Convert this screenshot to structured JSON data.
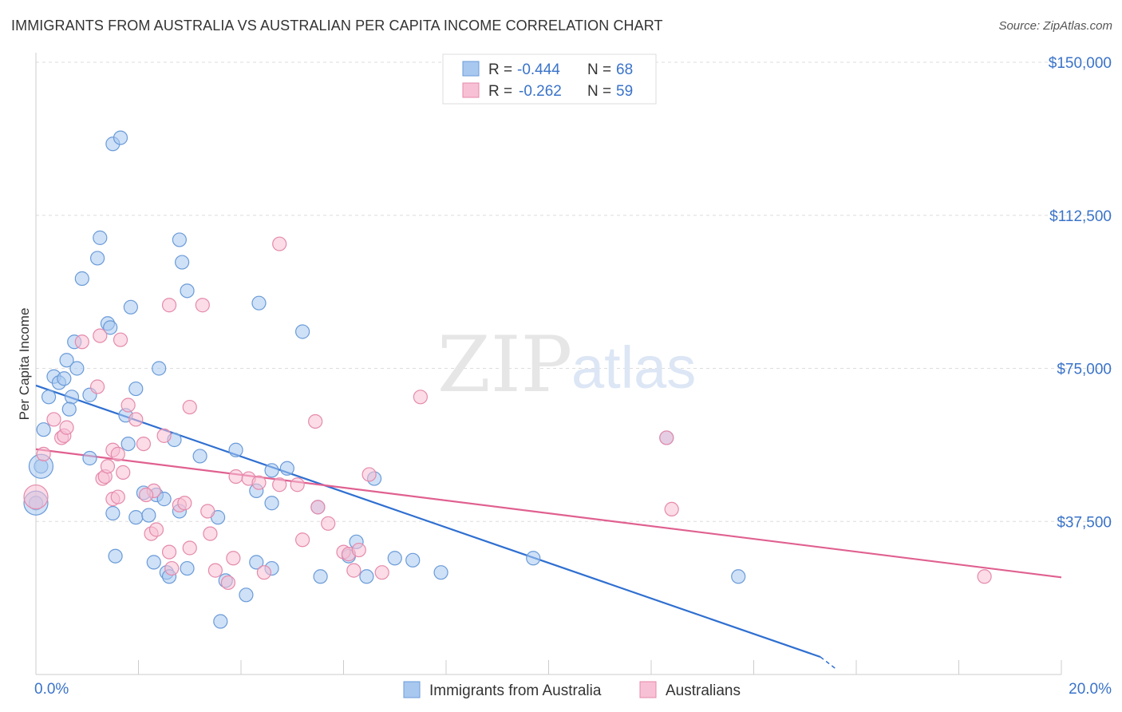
{
  "title": "IMMIGRANTS FROM AUSTRALIA VS AUSTRALIAN PER CAPITA INCOME CORRELATION CHART",
  "source": "Source: ZipAtlas.com",
  "watermark": {
    "zip": "ZIP",
    "atlas": "atlas"
  },
  "legend": {
    "r_label": "R =",
    "n_label": "N =",
    "entries": [
      {
        "r": "-0.444",
        "n": "68",
        "color": "#a8c8f0",
        "stroke": "#6a9bd8"
      },
      {
        "r": "-0.262",
        "n": "59",
        "color": "#f8c0d4",
        "stroke": "#e58aab"
      }
    ]
  },
  "bottom_legend": [
    {
      "label": "Immigrants from Australia",
      "color": "#a8c8f0",
      "stroke": "#6a9bd8"
    },
    {
      "label": "Australians",
      "color": "#f8c0d4",
      "stroke": "#e58aab"
    }
  ],
  "chart_data": {
    "type": "scatter",
    "title": "IMMIGRANTS FROM AUSTRALIA VS AUSTRALIAN PER CAPITA INCOME CORRELATION CHART",
    "xlabel": "",
    "ylabel": "Per Capita Income",
    "xlim": [
      0,
      20
    ],
    "ylim": [
      0,
      150000
    ],
    "x_tick_labels": [
      "0.0%",
      "20.0%"
    ],
    "y_ticks": [
      37500,
      75000,
      112500,
      150000
    ],
    "y_tick_labels": [
      "$37,500",
      "$75,000",
      "$112,500",
      "$150,000"
    ],
    "grid": true,
    "legend_position": "top-center",
    "series": [
      {
        "name": "Immigrants from Australia",
        "color": "#6a9bd8",
        "fill": "#a8c8f0",
        "trend": {
          "x": [
            0.0,
            15.3
          ],
          "y": [
            70800,
            4300
          ],
          "dashed_to": [
            15.6,
            1400
          ]
        },
        "points": [
          [
            0.15,
            60000
          ],
          [
            0.25,
            68000
          ],
          [
            0.35,
            73000
          ],
          [
            0.45,
            71500
          ],
          [
            0.6,
            77000
          ],
          [
            0.55,
            72500
          ],
          [
            0.8,
            75000
          ],
          [
            0.75,
            81500
          ],
          [
            0.7,
            68000
          ],
          [
            0.65,
            65000
          ],
          [
            1.05,
            68500
          ],
          [
            1.4,
            86000
          ],
          [
            1.45,
            85000
          ],
          [
            0.9,
            97000
          ],
          [
            1.2,
            102000
          ],
          [
            1.25,
            107000
          ],
          [
            1.5,
            130000
          ],
          [
            1.65,
            131500
          ],
          [
            1.85,
            90000
          ],
          [
            1.95,
            70000
          ],
          [
            1.75,
            63500
          ],
          [
            1.8,
            56500
          ],
          [
            2.4,
            75000
          ],
          [
            2.8,
            106500
          ],
          [
            2.85,
            101000
          ],
          [
            2.95,
            94000
          ],
          [
            1.05,
            53000
          ],
          [
            1.5,
            39500
          ],
          [
            1.95,
            38500
          ],
          [
            2.2,
            39000
          ],
          [
            2.1,
            44500
          ],
          [
            2.35,
            44000
          ],
          [
            2.5,
            43000
          ],
          [
            2.7,
            57500
          ],
          [
            2.8,
            40000
          ],
          [
            3.2,
            53500
          ],
          [
            3.55,
            38500
          ],
          [
            3.9,
            55000
          ],
          [
            4.35,
            91000
          ],
          [
            5.2,
            84000
          ],
          [
            4.9,
            50500
          ],
          [
            4.3,
            45000
          ],
          [
            4.6,
            42000
          ],
          [
            1.55,
            29000
          ],
          [
            2.3,
            27500
          ],
          [
            2.55,
            25000
          ],
          [
            2.6,
            24000
          ],
          [
            2.95,
            26000
          ],
          [
            3.7,
            23000
          ],
          [
            4.1,
            19500
          ],
          [
            3.6,
            13000
          ],
          [
            4.3,
            27500
          ],
          [
            4.6,
            26000
          ],
          [
            5.5,
            41000
          ],
          [
            5.55,
            24000
          ],
          [
            6.1,
            29000
          ],
          [
            6.25,
            32500
          ],
          [
            6.45,
            24000
          ],
          [
            6.6,
            48000
          ],
          [
            7.0,
            28500
          ],
          [
            7.35,
            28000
          ],
          [
            7.9,
            25000
          ],
          [
            9.7,
            28500
          ],
          [
            12.3,
            58000
          ],
          [
            13.7,
            24000
          ],
          [
            0.1,
            51000
          ],
          [
            0.0,
            42000
          ],
          [
            4.6,
            50000
          ]
        ],
        "large_points": [
          [
            0.1,
            51000
          ],
          [
            0.0,
            42000
          ]
        ]
      },
      {
        "name": "Australians",
        "color": "#e58aab",
        "fill": "#f8c0d4",
        "trend": {
          "x": [
            0.0,
            20.0
          ],
          "y": [
            55200,
            23800
          ]
        },
        "points": [
          [
            0.15,
            54000
          ],
          [
            0.35,
            62500
          ],
          [
            0.5,
            58000
          ],
          [
            0.55,
            58500
          ],
          [
            0.6,
            60500
          ],
          [
            0.9,
            81500
          ],
          [
            1.25,
            83000
          ],
          [
            1.2,
            70500
          ],
          [
            1.3,
            48000
          ],
          [
            1.35,
            48500
          ],
          [
            1.5,
            55000
          ],
          [
            1.6,
            54000
          ],
          [
            1.4,
            51000
          ],
          [
            1.5,
            43000
          ],
          [
            1.7,
            49500
          ],
          [
            1.6,
            43500
          ],
          [
            1.8,
            66000
          ],
          [
            1.95,
            62500
          ],
          [
            1.65,
            82000
          ],
          [
            2.1,
            56500
          ],
          [
            2.3,
            45000
          ],
          [
            2.15,
            44000
          ],
          [
            2.25,
            34500
          ],
          [
            2.35,
            35500
          ],
          [
            2.5,
            58500
          ],
          [
            2.6,
            30000
          ],
          [
            2.65,
            26000
          ],
          [
            2.8,
            41500
          ],
          [
            2.9,
            42000
          ],
          [
            3.0,
            31000
          ],
          [
            3.0,
            65500
          ],
          [
            2.6,
            90500
          ],
          [
            3.25,
            90500
          ],
          [
            3.35,
            40000
          ],
          [
            3.4,
            34500
          ],
          [
            3.5,
            25500
          ],
          [
            3.75,
            22500
          ],
          [
            3.85,
            28500
          ],
          [
            3.9,
            48500
          ],
          [
            4.15,
            48000
          ],
          [
            4.35,
            47000
          ],
          [
            4.45,
            25000
          ],
          [
            4.75,
            46500
          ],
          [
            4.75,
            105500
          ],
          [
            5.1,
            46500
          ],
          [
            5.2,
            33000
          ],
          [
            5.5,
            41000
          ],
          [
            5.45,
            62000
          ],
          [
            5.7,
            37000
          ],
          [
            6.0,
            30000
          ],
          [
            6.1,
            29500
          ],
          [
            6.2,
            25500
          ],
          [
            6.3,
            30500
          ],
          [
            6.5,
            49000
          ],
          [
            6.75,
            25000
          ],
          [
            7.5,
            68000
          ],
          [
            12.3,
            58000
          ],
          [
            12.4,
            40500
          ],
          [
            18.5,
            24000
          ]
        ],
        "large_points": [
          [
            0.0,
            43500
          ]
        ]
      }
    ]
  }
}
